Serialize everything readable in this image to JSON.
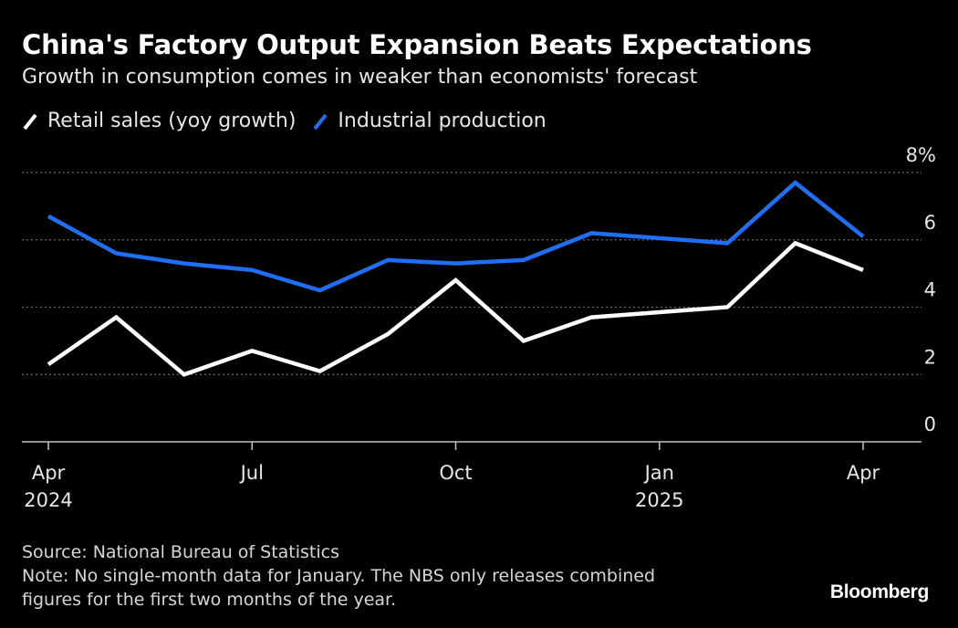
{
  "header": {
    "title": "China's Factory Output Expansion Beats Expectations",
    "subtitle": "Growth in consumption comes in weaker than economists' forecast"
  },
  "footer": {
    "source": "Source: National Bureau of Statistics",
    "note_line1": "Note: No single-month data for January. The NBS only releases combined",
    "note_line2": "figures for the first two months of the year.",
    "brand": "Bloomberg"
  },
  "colors": {
    "background": "#000000",
    "retail": "#ffffff",
    "industrial": "#1f6ff5",
    "grid": "#6b6b6b",
    "axis": "#bfbfbf"
  },
  "chart_data": {
    "type": "line",
    "title": "China's Factory Output Expansion Beats Expectations",
    "ylabel": "",
    "xlabel": "",
    "ylim": [
      0,
      8
    ],
    "y_ticks": [
      {
        "value": 0,
        "label": "0"
      },
      {
        "value": 2,
        "label": "2"
      },
      {
        "value": 4,
        "label": "4"
      },
      {
        "value": 6,
        "label": "6"
      },
      {
        "value": 8,
        "label": "8%"
      }
    ],
    "x_ticks": [
      {
        "index": 0,
        "label": "Apr",
        "label2": "2024"
      },
      {
        "index": 3,
        "label": "Jul",
        "label2": ""
      },
      {
        "index": 6,
        "label": "Oct",
        "label2": ""
      },
      {
        "index": 9,
        "label": "Jan",
        "label2": "2025"
      },
      {
        "index": 12,
        "label": "Apr",
        "label2": ""
      }
    ],
    "x": [
      "2024-04",
      "2024-05",
      "2024-06",
      "2024-07",
      "2024-08",
      "2024-09",
      "2024-10",
      "2024-11",
      "2024-12",
      "2025-01",
      "2025-02",
      "2025-03",
      "2025-04"
    ],
    "series": [
      {
        "name": "Retail sales (yoy growth)",
        "key": "retail",
        "points": [
          [
            0,
            2.3
          ],
          [
            1,
            3.7
          ],
          [
            2,
            2.0
          ],
          [
            3,
            2.7
          ],
          [
            4,
            2.1
          ],
          [
            5,
            3.2
          ],
          [
            6,
            4.8
          ],
          [
            7,
            3.0
          ],
          [
            8,
            3.7
          ],
          [
            10,
            4.0
          ],
          [
            11,
            5.9
          ],
          [
            12,
            5.1
          ]
        ]
      },
      {
        "name": "Industrial production",
        "key": "industrial",
        "points": [
          [
            0,
            6.7
          ],
          [
            1,
            5.6
          ],
          [
            2,
            5.3
          ],
          [
            3,
            5.1
          ],
          [
            4,
            4.5
          ],
          [
            5,
            5.4
          ],
          [
            6,
            5.3
          ],
          [
            7,
            5.4
          ],
          [
            8,
            6.2
          ],
          [
            10,
            5.9
          ],
          [
            11,
            7.7
          ],
          [
            12,
            6.1
          ]
        ]
      }
    ]
  }
}
